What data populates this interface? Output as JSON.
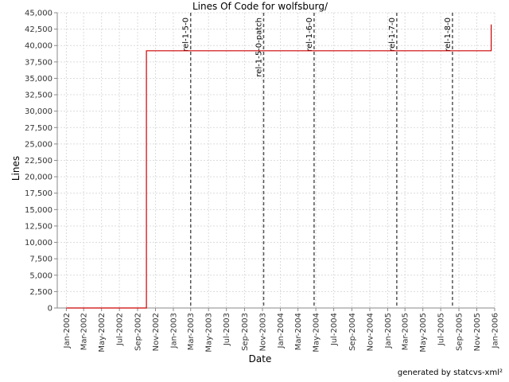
{
  "chart_data": {
    "type": "line",
    "title": "Lines Of Code for wolfsburg/",
    "xlabel": "Date",
    "ylabel": "Lines",
    "ylim": [
      0,
      45000
    ],
    "xlim": [
      "2001-12-01",
      "2006-01-01"
    ],
    "y_ticks": [
      0,
      2500,
      5000,
      7500,
      10000,
      12500,
      15000,
      17500,
      20000,
      22500,
      25000,
      27500,
      30000,
      32500,
      35000,
      37500,
      40000,
      42500,
      45000
    ],
    "y_tick_labels": [
      "0",
      "2,500",
      "5,000",
      "7,500",
      "10,000",
      "12,500",
      "15,000",
      "17,500",
      "20,000",
      "22,500",
      "25,000",
      "27,500",
      "30,000",
      "32,500",
      "35,000",
      "37,500",
      "40,000",
      "42,500",
      "45,000"
    ],
    "x_ticks": [
      {
        "date": "2002-01-01",
        "label": "Jan-2002"
      },
      {
        "date": "2002-03-01",
        "label": "Mar-2002"
      },
      {
        "date": "2002-05-01",
        "label": "May-2002"
      },
      {
        "date": "2002-07-01",
        "label": "Jul-2002"
      },
      {
        "date": "2002-09-01",
        "label": "Sep-2002"
      },
      {
        "date": "2002-11-01",
        "label": "Nov-2002"
      },
      {
        "date": "2003-01-01",
        "label": "Jan-2003"
      },
      {
        "date": "2003-03-01",
        "label": "Mar-2003"
      },
      {
        "date": "2003-05-01",
        "label": "May-2003"
      },
      {
        "date": "2003-07-01",
        "label": "Jul-2003"
      },
      {
        "date": "2003-09-01",
        "label": "Sep-2003"
      },
      {
        "date": "2003-11-01",
        "label": "Nov-2003"
      },
      {
        "date": "2004-01-01",
        "label": "Jan-2004"
      },
      {
        "date": "2004-03-01",
        "label": "Mar-2004"
      },
      {
        "date": "2004-05-01",
        "label": "May-2004"
      },
      {
        "date": "2004-07-01",
        "label": "Jul-2004"
      },
      {
        "date": "2004-09-01",
        "label": "Sep-2004"
      },
      {
        "date": "2004-11-01",
        "label": "Nov-2004"
      },
      {
        "date": "2005-01-01",
        "label": "Jan-2005"
      },
      {
        "date": "2005-03-01",
        "label": "Mar-2005"
      },
      {
        "date": "2005-05-01",
        "label": "May-2005"
      },
      {
        "date": "2005-07-01",
        "label": "Jul-2005"
      },
      {
        "date": "2005-09-01",
        "label": "Sep-2005"
      },
      {
        "date": "2005-11-01",
        "label": "Nov-2005"
      },
      {
        "date": "2006-01-01",
        "label": "Jan-2006"
      }
    ],
    "grid": true,
    "series": [
      {
        "color": "#cc0000",
        "step": true,
        "points": [
          {
            "x": "2002-01-01",
            "y": 0
          },
          {
            "x": "2002-10-01",
            "y": 0
          },
          {
            "x": "2002-10-01",
            "y": 39200
          },
          {
            "x": "2005-12-20",
            "y": 39200
          },
          {
            "x": "2005-12-20",
            "y": 43200
          }
        ]
      }
    ],
    "markers": [
      {
        "date": "2003-03-01",
        "label": "rel-1-5-0"
      },
      {
        "date": "2003-11-05",
        "label": "rel-1-5-0-patch"
      },
      {
        "date": "2004-04-25",
        "label": "rel-1-6-0"
      },
      {
        "date": "2005-02-01",
        "label": "rel-1-7-0"
      },
      {
        "date": "2005-08-10",
        "label": "rel-1-8-0"
      }
    ],
    "marker_color": "#555555"
  },
  "footer": {
    "credit": "generated by statcvs-xml²"
  }
}
